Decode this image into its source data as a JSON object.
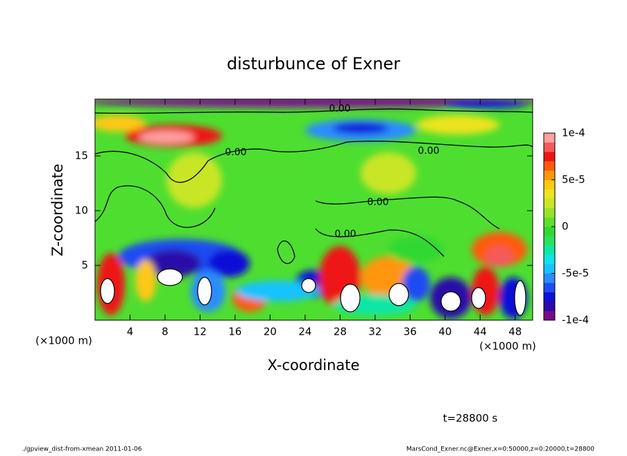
{
  "chart_data": {
    "type": "contour",
    "title": "disturbunce of Exner",
    "xlabel": "X-coordinate",
    "ylabel": "Z-coordinate",
    "x_unit": "(×1000 m)",
    "xlim": [
      0,
      50
    ],
    "xticks": [
      4,
      8,
      12,
      16,
      20,
      24,
      28,
      32,
      36,
      40,
      44,
      48
    ],
    "ylim": [
      0,
      20
    ],
    "yticks": [
      5,
      10,
      15
    ],
    "contour_levels": [
      {
        "value": 0,
        "label": "0.00"
      }
    ],
    "clim": [
      -0.0001,
      0.0001
    ],
    "cticks": [
      {
        "value": 0.0001,
        "label": "1e-4"
      },
      {
        "value": 5e-05,
        "label": "5e-5"
      },
      0,
      {
        "value": -5e-05,
        "label": "-5e-5"
      },
      {
        "value": -0.0001,
        "label": "-1e-4"
      }
    ],
    "colormap": [
      "#7a0a8c",
      "#2a0aa8",
      "#1010d8",
      "#1f4cf2",
      "#2a8cff",
      "#19c2ff",
      "#10e4e6",
      "#10e6a6",
      "#2de05a",
      "#32d832",
      "#5ede2e",
      "#96e22a",
      "#c8e626",
      "#ece41e",
      "#ffc814",
      "#ff960a",
      "#ff5a0a",
      "#ee1414",
      "#f45a5a",
      "#ffa0a0"
    ],
    "annotation": "t=28800 s",
    "footer_left": "./gpview_dist-from-xmean  2011-01-06",
    "footer_right": "MarsCond_Exner.nc@Exner,x=0:50000,z=0:20000,t=28800"
  }
}
